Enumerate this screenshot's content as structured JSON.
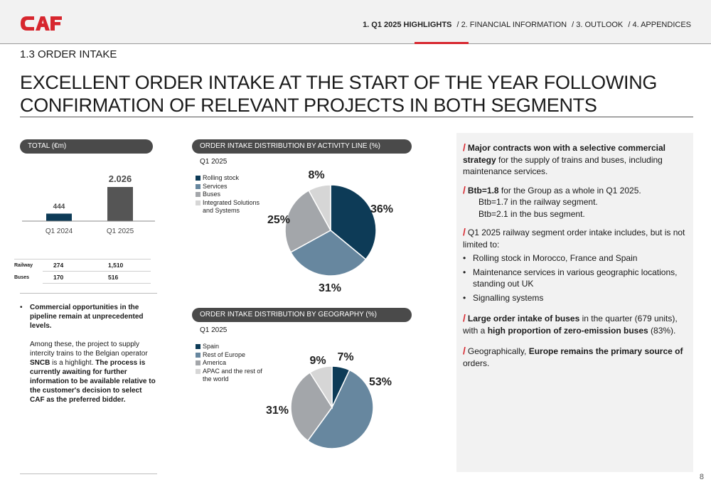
{
  "brand": {
    "logo_text": "CAF",
    "accent": "#d7262e"
  },
  "nav": {
    "items": [
      "1. Q1 2025 HIGHLIGHTS",
      "/  2. FINANCIAL INFORMATION",
      "/  3. OUTLOOK",
      "/ 4. APPENDICES"
    ]
  },
  "section_title": "1.3 ORDER INTAKE",
  "headline_line1": "EXCELLENT ORDER INTAKE AT THE START OF THE YEAR FOLLOWING",
  "headline_line2": "CONFIRMATION OF RELEVANT PROJECTS IN BOTH SEGMENTS",
  "total_panel": {
    "title": "TOTAL (€m)",
    "table": [
      {
        "label": "Railway",
        "q1_2024": "274",
        "q1_2025": "1,510"
      },
      {
        "label": "Buses",
        "q1_2024": "170",
        "q1_2025": "516"
      }
    ]
  },
  "commentary": {
    "bullet": "•",
    "line1": "Commercial opportunities in the pipeline remain at unprecedented levels.",
    "p2_a": "Among these, the project to supply intercity trains to the Belgian operator ",
    "p2_b": "SNCB",
    "p2_c": " is a highlight. ",
    "p2_d": "The process is currently awaiting for further information to be available relative to the customer's decision to select CAF as the preferred bidder."
  },
  "activity_panel": {
    "title": "ORDER INTAKE DISTRIBUTION BY ACTIVITY LINE (%)",
    "period": "Q1 2025"
  },
  "geo_panel": {
    "title": "ORDER INTAKE DISTRIBUTION BY GEOGRAPHY (%)",
    "period": "Q1 2025"
  },
  "chart_data": [
    {
      "type": "bar",
      "categories": [
        "Q1 2024",
        "Q1 2025"
      ],
      "values": [
        444,
        2026
      ],
      "data_labels": [
        "444",
        "2.026"
      ],
      "colors": [
        "#0d3b57",
        "#555555"
      ]
    },
    {
      "type": "pie",
      "labels": [
        "Rolling stock",
        "Services",
        "Buses",
        "Integrated Solutions and Systems"
      ],
      "values": [
        36,
        31,
        25,
        8
      ],
      "data_labels": [
        "36%",
        "31%",
        "25%",
        "8%"
      ],
      "colors": [
        "#0d3b57",
        "#67879f",
        "#a3a6aa",
        "#d6d6d6"
      ],
      "legend": "top-left"
    },
    {
      "type": "pie",
      "labels": [
        "Spain",
        "Rest of Europe",
        "America",
        "APAC and the rest of the world"
      ],
      "values": [
        7,
        53,
        31,
        9
      ],
      "data_labels": [
        "7%",
        "53%",
        "31%",
        "9%"
      ],
      "colors": [
        "#0d3b57",
        "#67879f",
        "#a3a6aa",
        "#d6d6d6"
      ],
      "legend": "top-left"
    }
  ],
  "right_panel": {
    "b1_bold": "Major contracts won with a selective commercial strategy",
    "b1_rest": " for the supply of trains and buses, including maintenance services.",
    "b2_bold": "Btb=1.8",
    "b2_rest": " for the Group as a whole in Q1 2025.",
    "b2_sub1": "Btb=1.7 in the railway segment.",
    "b2_sub2": "Btb=2.1 in the bus segment.",
    "b3_text": "Q1 2025 railway segment order intake includes, but is not limited to:",
    "b3_items": [
      "Rolling stock in Morocco, France and Spain",
      "Maintenance services in various geographic locations, standing out UK",
      "Signalling systems"
    ],
    "b4_bold1": "Large order intake of buses",
    "b4_mid": " in the quarter (679 units), with a ",
    "b4_bold2": "high proportion of zero-emission buses",
    "b4_end": " (83%).",
    "b5_pre": "Geographically, ",
    "b5_bold": "Europe remains the primary source of",
    "b5_end": " orders.",
    "slash": "/"
  },
  "page_number": "8"
}
